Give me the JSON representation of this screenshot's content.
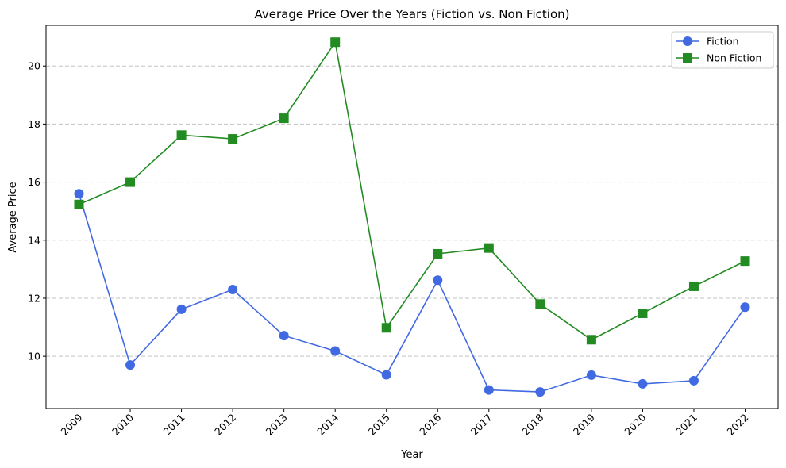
{
  "chart_data": {
    "type": "line",
    "title": "Average Price Over the Years (Fiction vs. Non Fiction)",
    "xlabel": "Year",
    "ylabel": "Average Price",
    "categories": [
      "2009",
      "2010",
      "2011",
      "2012",
      "2013",
      "2014",
      "2015",
      "2016",
      "2017",
      "2018",
      "2019",
      "2020",
      "2021",
      "2022"
    ],
    "yticks": [
      10,
      12,
      14,
      16,
      18,
      20
    ],
    "ylim": [
      8.2,
      21.4
    ],
    "grid": "y-dashed",
    "legend_position": "top-right",
    "series": [
      {
        "name": "Fiction",
        "color": "#4169E1",
        "marker": "circle",
        "values": [
          15.6,
          9.7,
          11.62,
          12.3,
          10.71,
          10.18,
          9.36,
          12.62,
          8.84,
          8.77,
          9.35,
          9.05,
          9.16,
          11.69
        ]
      },
      {
        "name": "Non Fiction",
        "color": "#228B22",
        "marker": "square",
        "values": [
          15.23,
          16.0,
          17.62,
          17.49,
          18.2,
          20.82,
          10.98,
          13.53,
          13.73,
          11.8,
          10.57,
          11.48,
          12.41,
          13.28
        ]
      }
    ]
  }
}
